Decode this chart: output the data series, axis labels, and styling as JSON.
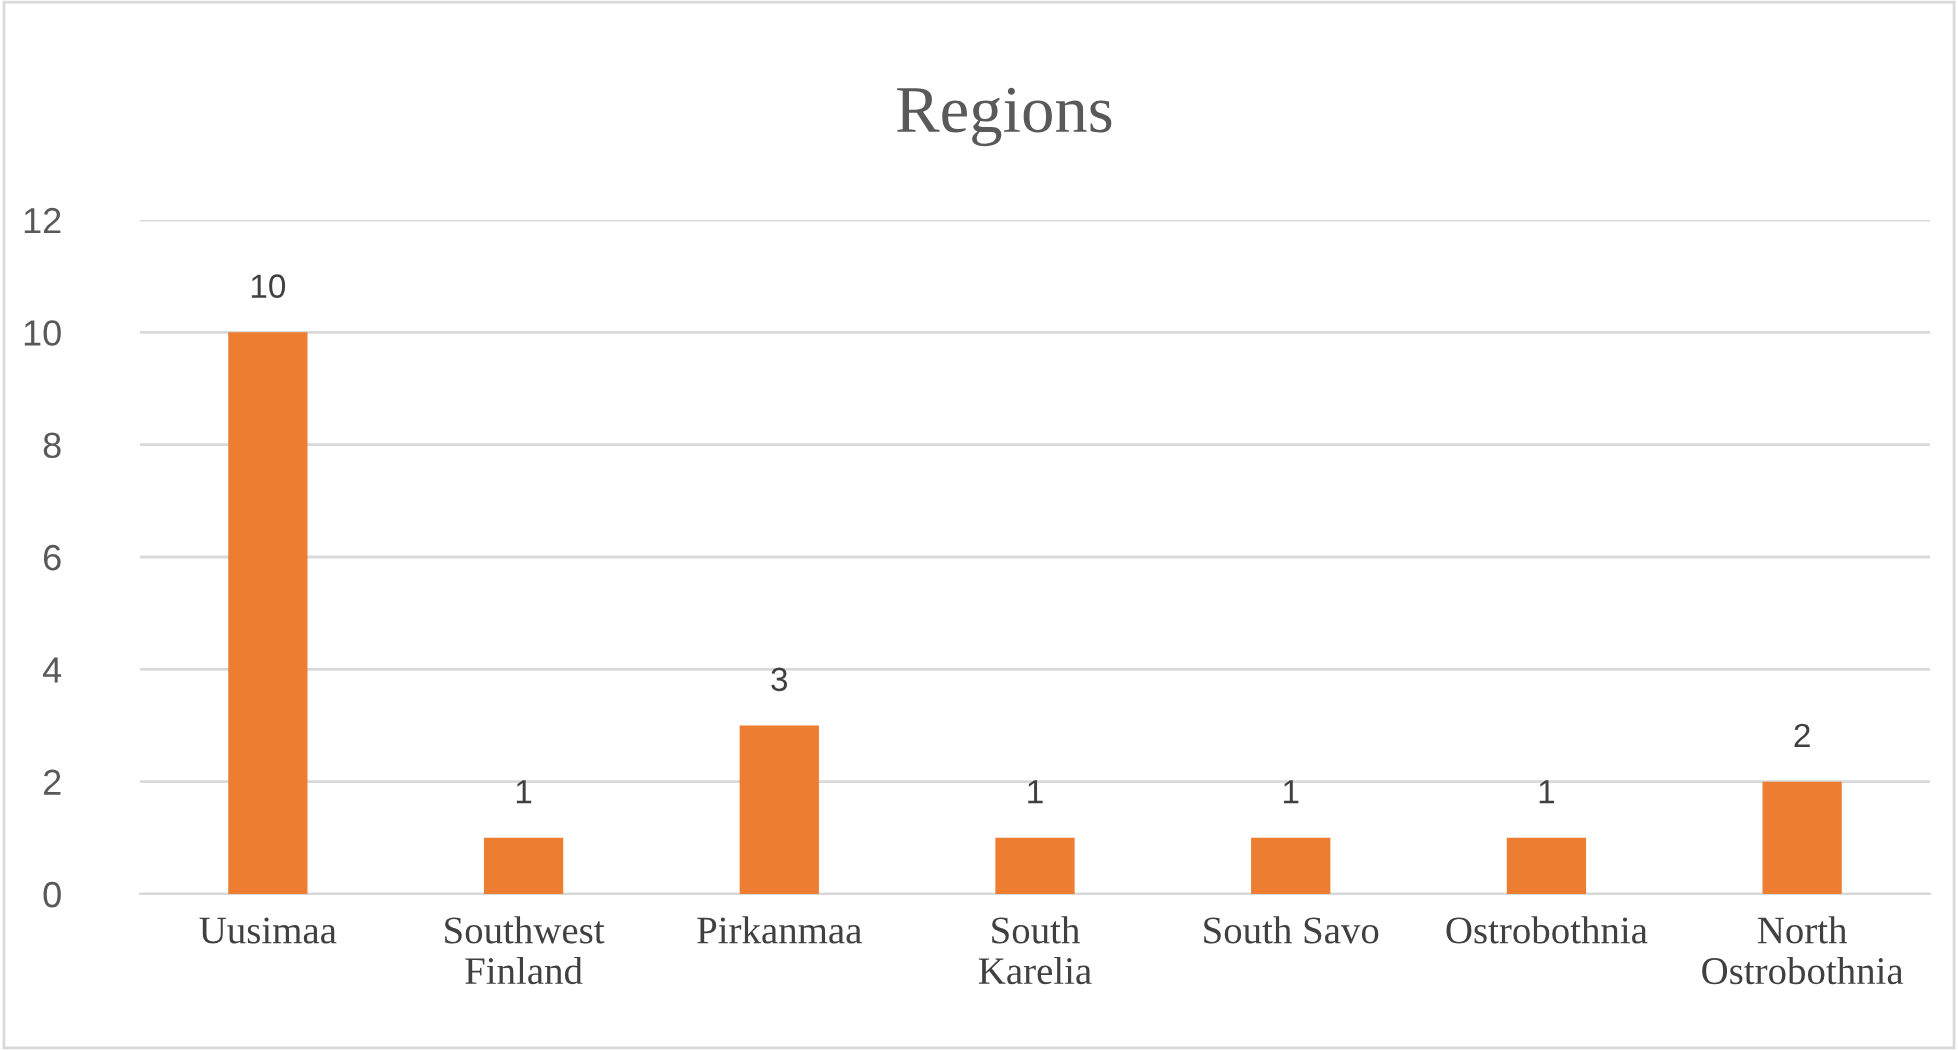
{
  "chart_data": {
    "type": "bar",
    "title": "Regions",
    "categories": [
      "Uusimaa",
      "Southwest\nFinland",
      "Pirkanmaa",
      "South\nKarelia",
      "South Savo",
      "Ostrobothnia",
      "North\nOstrobothnia"
    ],
    "values": [
      10,
      1,
      3,
      1,
      1,
      1,
      2
    ],
    "color": "#ed7d31",
    "ylim": [
      0,
      12
    ],
    "yticks": [
      0,
      2,
      4,
      6,
      8,
      10,
      12
    ],
    "grid": "y",
    "data_labels": true
  }
}
